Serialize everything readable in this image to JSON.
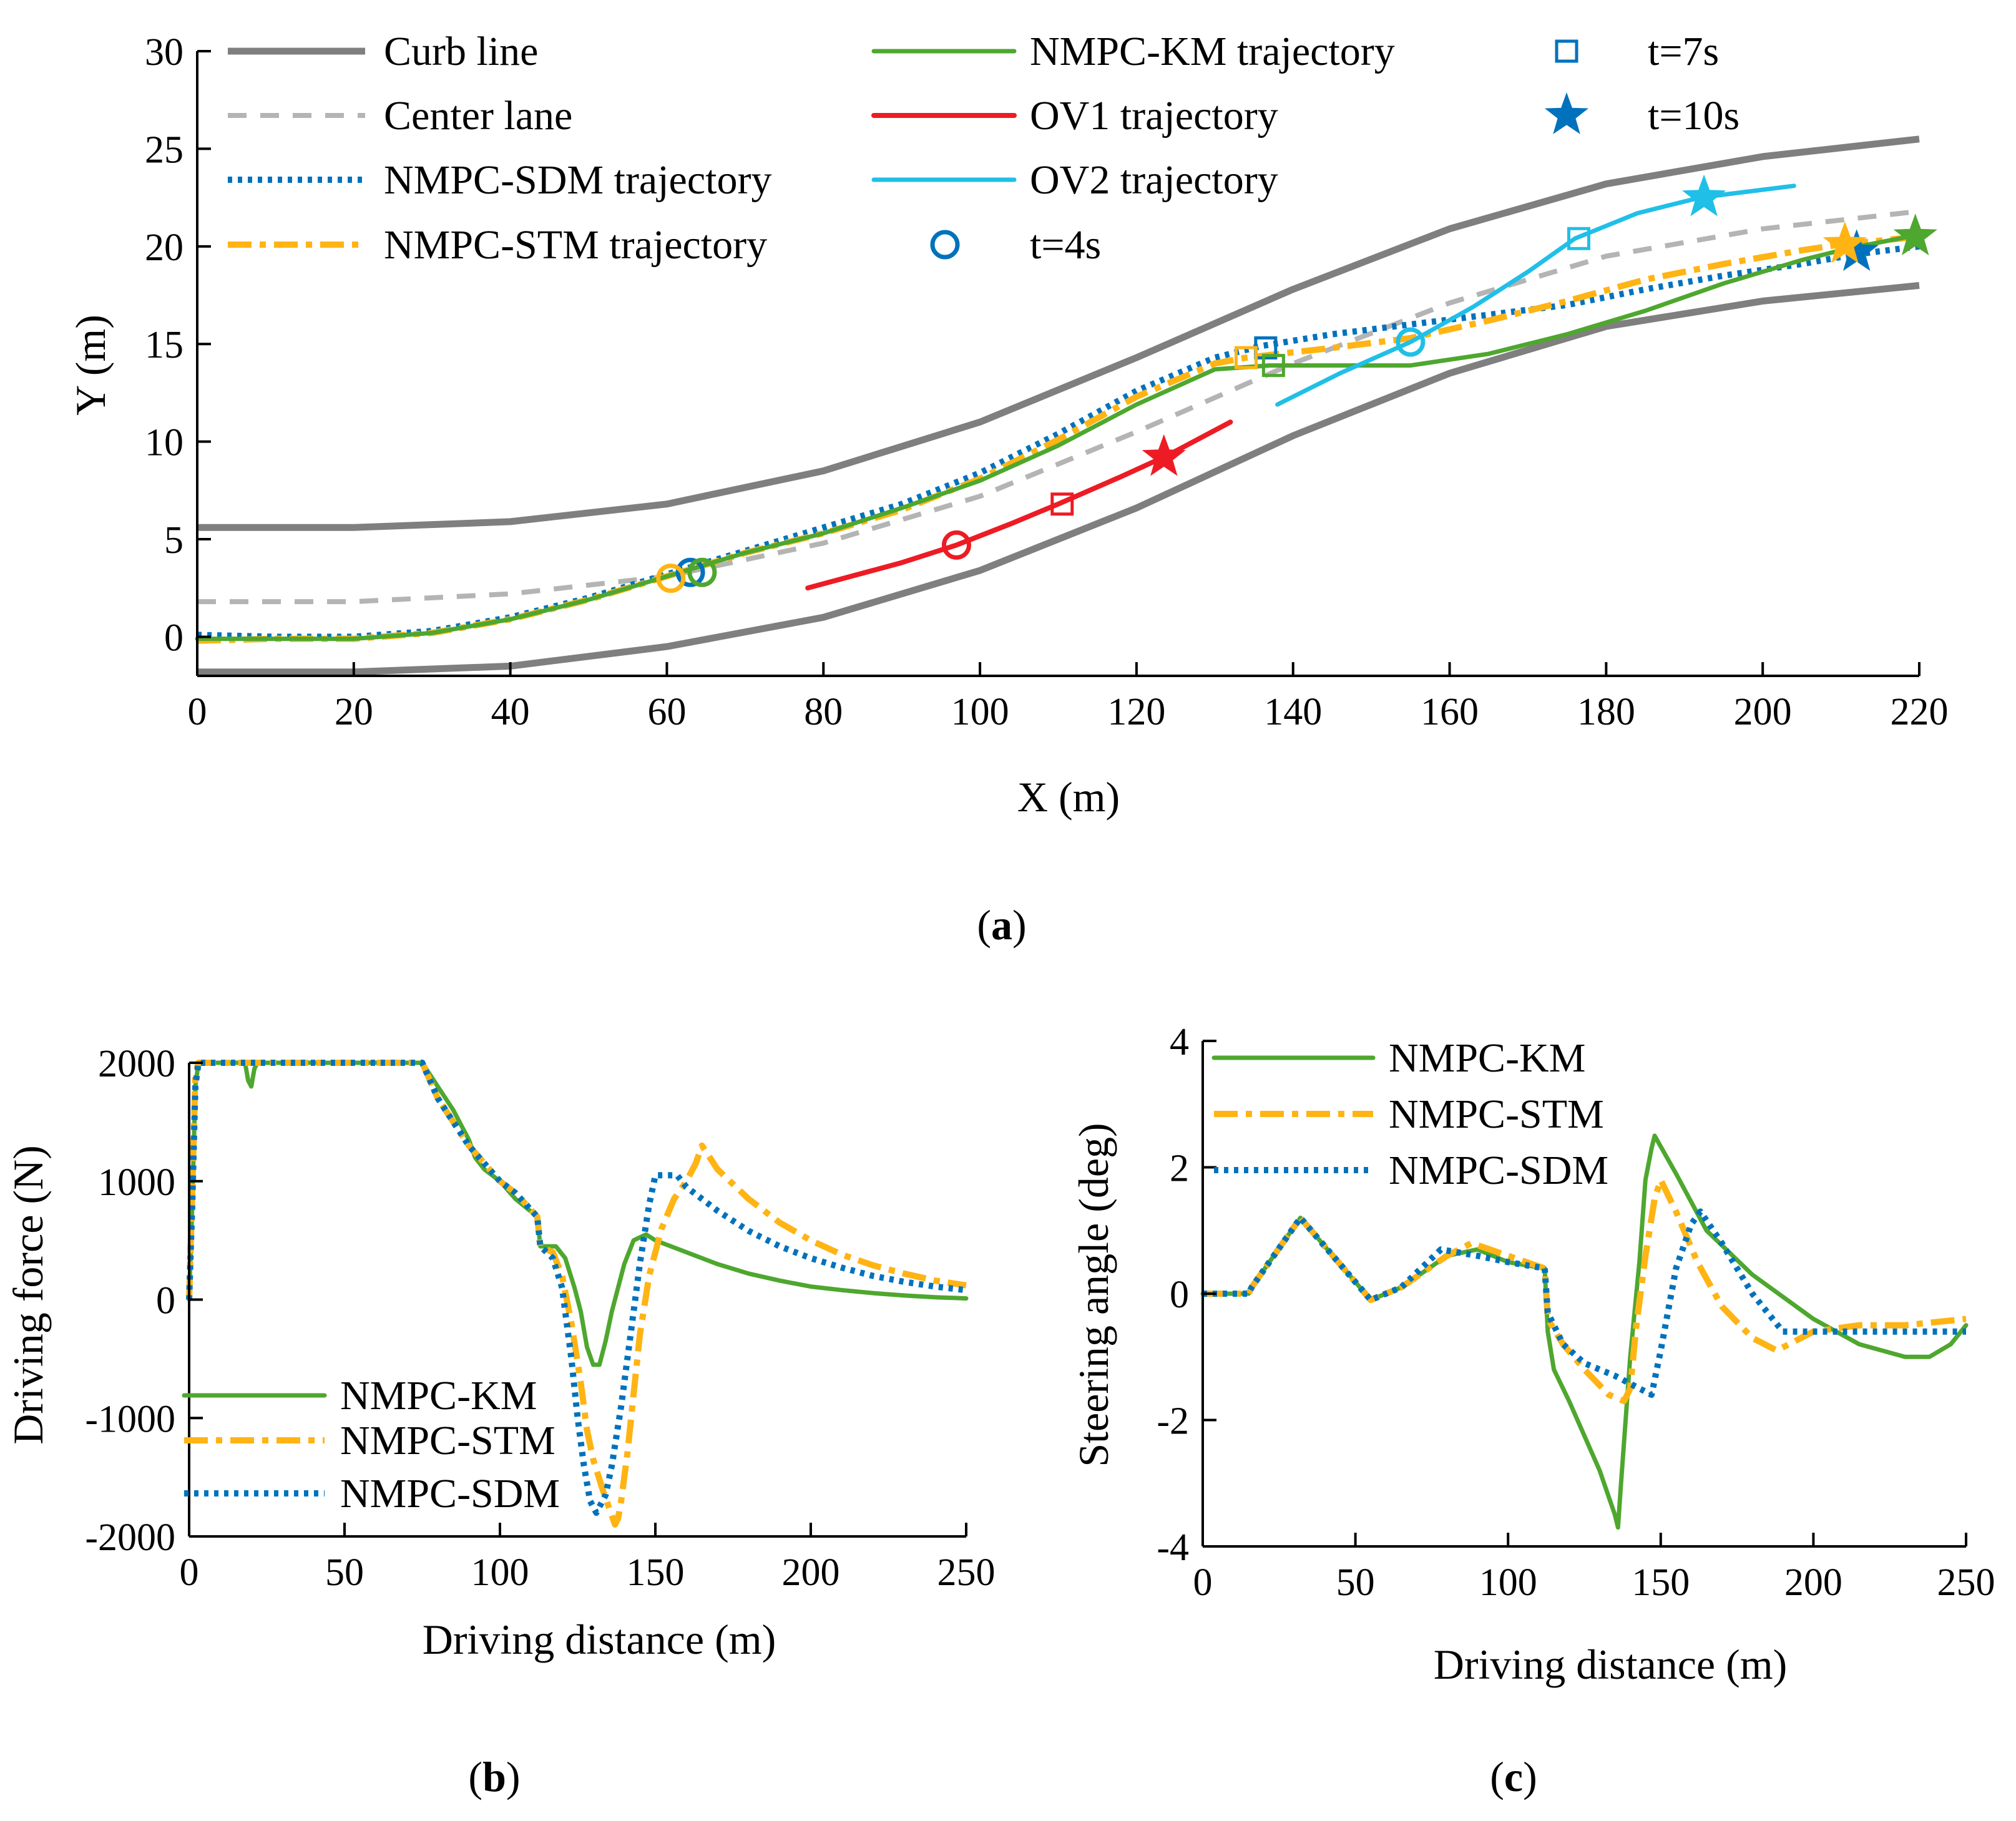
{
  "chart_data": [
    {
      "id": "a",
      "type": "line",
      "panel_label": "a",
      "xlabel": "X (m)",
      "ylabel": "Y (m)",
      "xlim": [
        0,
        220
      ],
      "ylim": [
        -2,
        30
      ],
      "xticks": [
        0,
        20,
        40,
        60,
        80,
        100,
        120,
        140,
        160,
        180,
        200,
        220
      ],
      "yticks": [
        0,
        5,
        10,
        15,
        20,
        25,
        30
      ],
      "legend": [
        {
          "label": "Curb line",
          "style": "curb",
          "symbol": "line"
        },
        {
          "label": "Center lane",
          "style": "center",
          "symbol": "line"
        },
        {
          "label": "NMPC-SDM trajectory",
          "style": "sdm",
          "symbol": "line"
        },
        {
          "label": "NMPC-STM trajectory",
          "style": "stm",
          "symbol": "line"
        },
        {
          "label": "NMPC-KM trajectory",
          "style": "km",
          "symbol": "line"
        },
        {
          "label": "OV1 trajectory",
          "style": "ov1",
          "symbol": "line"
        },
        {
          "label": "OV2 trajectory",
          "style": "ov2",
          "symbol": "line"
        },
        {
          "label": "t=4s",
          "style": "marker",
          "symbol": "circle"
        },
        {
          "label": "t=7s",
          "style": "marker",
          "symbol": "square"
        },
        {
          "label": "t=10s",
          "style": "marker",
          "symbol": "star"
        }
      ],
      "series": [
        {
          "name": "Curb line (upper)",
          "style": "curb",
          "x": [
            0,
            20,
            40,
            60,
            80,
            100,
            120,
            140,
            160,
            180,
            200,
            220
          ],
          "y": [
            5.6,
            5.6,
            5.9,
            6.8,
            8.5,
            11.0,
            14.3,
            17.8,
            20.9,
            23.2,
            24.6,
            25.5
          ]
        },
        {
          "name": "Curb line (lower)",
          "style": "curb",
          "x": [
            0,
            20,
            40,
            60,
            80,
            100,
            120,
            140,
            160,
            180,
            200,
            220
          ],
          "y": [
            -1.8,
            -1.8,
            -1.5,
            -0.5,
            1.0,
            3.4,
            6.6,
            10.3,
            13.5,
            15.9,
            17.2,
            18.0
          ]
        },
        {
          "name": "Center lane",
          "style": "center",
          "x": [
            0,
            20,
            40,
            60,
            80,
            100,
            120,
            140,
            160,
            180,
            200,
            220
          ],
          "y": [
            1.8,
            1.8,
            2.2,
            3.1,
            4.8,
            7.2,
            10.5,
            14.0,
            17.1,
            19.5,
            20.9,
            21.8
          ]
        },
        {
          "name": "NMPC-SDM trajectory",
          "style": "sdm",
          "x": [
            0,
            10,
            20,
            30,
            40,
            50,
            60,
            70,
            80,
            90,
            100,
            110,
            120,
            130,
            136,
            145,
            155,
            165,
            175,
            185,
            195,
            205,
            212,
            220
          ],
          "y": [
            0.1,
            0.0,
            0.0,
            0.3,
            1.0,
            2.0,
            3.2,
            4.4,
            5.6,
            6.8,
            8.4,
            10.4,
            12.6,
            14.3,
            14.9,
            15.5,
            16.0,
            16.5,
            17.0,
            17.8,
            18.5,
            19.1,
            19.6,
            20.0
          ]
        },
        {
          "name": "NMPC-STM trajectory",
          "style": "stm",
          "x": [
            0,
            10,
            20,
            30,
            40,
            50,
            60,
            70,
            80,
            90,
            100,
            110,
            120,
            130,
            134,
            145,
            155,
            165,
            175,
            185,
            195,
            205,
            210,
            220
          ],
          "y": [
            -0.2,
            -0.1,
            -0.1,
            0.2,
            0.9,
            1.9,
            3.1,
            4.3,
            5.3,
            6.5,
            8.1,
            10.1,
            12.3,
            14.0,
            14.3,
            14.8,
            15.3,
            16.2,
            17.2,
            18.3,
            19.1,
            19.8,
            20.1,
            20.5
          ]
        },
        {
          "name": "NMPC-KM trajectory",
          "style": "km",
          "x": [
            0,
            10,
            20,
            30,
            40,
            50,
            60,
            70,
            80,
            90,
            100,
            110,
            120,
            130,
            137,
            145,
            155,
            165,
            175,
            185,
            195,
            205,
            211,
            220
          ],
          "y": [
            -0.1,
            -0.1,
            -0.1,
            0.2,
            0.9,
            1.9,
            3.1,
            4.3,
            5.3,
            6.6,
            8.0,
            9.8,
            11.9,
            13.7,
            13.9,
            13.9,
            13.9,
            14.5,
            15.5,
            16.7,
            18.1,
            19.3,
            19.9,
            20.6
          ]
        },
        {
          "name": "OV1 trajectory",
          "style": "ov1",
          "x": [
            78,
            90,
            97,
            104,
            110,
            118,
            124,
            132
          ],
          "y": [
            2.5,
            3.8,
            4.7,
            5.8,
            6.8,
            8.2,
            9.3,
            11.0
          ]
        },
        {
          "name": "OV2 trajectory",
          "style": "ov2",
          "x": [
            138,
            146,
            155,
            163,
            170,
            176,
            184,
            192,
            204
          ],
          "y": [
            11.9,
            13.5,
            15.1,
            16.9,
            18.7,
            20.4,
            21.7,
            22.5,
            23.1
          ]
        }
      ],
      "markers": [
        {
          "series": "NMPC-SDM",
          "time": "t=4s",
          "symbol": "circle",
          "x": 63,
          "y": 3.3,
          "style": "sdm"
        },
        {
          "series": "NMPC-STM",
          "time": "t=4s",
          "symbol": "circle",
          "x": 60.5,
          "y": 3.0,
          "style": "stm"
        },
        {
          "series": "NMPC-KM",
          "time": "t=4s",
          "symbol": "circle",
          "x": 64.5,
          "y": 3.3,
          "style": "km"
        },
        {
          "series": "OV1",
          "time": "t=4s",
          "symbol": "circle",
          "x": 97,
          "y": 4.7,
          "style": "ov1"
        },
        {
          "series": "OV2",
          "time": "t=4s",
          "symbol": "circle",
          "x": 155,
          "y": 15.1,
          "style": "ov2"
        },
        {
          "series": "NMPC-SDM",
          "time": "t=7s",
          "symbol": "square",
          "x": 136.5,
          "y": 14.8,
          "style": "sdm"
        },
        {
          "series": "NMPC-STM",
          "time": "t=7s",
          "symbol": "square",
          "x": 134,
          "y": 14.3,
          "style": "stm"
        },
        {
          "series": "NMPC-KM",
          "time": "t=7s",
          "symbol": "square",
          "x": 137.5,
          "y": 13.9,
          "style": "km"
        },
        {
          "series": "OV1",
          "time": "t=7s",
          "symbol": "square",
          "x": 110.5,
          "y": 6.8,
          "style": "ov1"
        },
        {
          "series": "OV2",
          "time": "t=7s",
          "symbol": "square",
          "x": 176.5,
          "y": 20.4,
          "style": "ov2"
        },
        {
          "series": "NMPC-SDM",
          "time": "t=10s",
          "symbol": "star",
          "x": 212,
          "y": 19.7,
          "style": "sdm"
        },
        {
          "series": "NMPC-STM",
          "time": "t=10s",
          "symbol": "star",
          "x": 210.5,
          "y": 20.1,
          "style": "stm"
        },
        {
          "series": "NMPC-KM",
          "time": "t=10s",
          "symbol": "star",
          "x": 219.5,
          "y": 20.5,
          "style": "km"
        },
        {
          "series": "OV1",
          "time": "t=10s",
          "symbol": "star",
          "x": 123.5,
          "y": 9.2,
          "style": "ov1"
        },
        {
          "series": "OV2",
          "time": "t=10s",
          "symbol": "star",
          "x": 192.5,
          "y": 22.5,
          "style": "ov2"
        }
      ]
    },
    {
      "id": "b",
      "type": "line",
      "panel_label": "b",
      "xlabel": "Driving distance (m)",
      "ylabel": "Driving force (N)",
      "xlim": [
        0,
        250
      ],
      "ylim": [
        -2000,
        2000
      ],
      "xticks": [
        0,
        50,
        100,
        150,
        200,
        250
      ],
      "yticks": [
        -2000,
        -1000,
        0,
        1000,
        2000
      ],
      "legend": [
        {
          "label": "NMPC-KM",
          "style": "km",
          "symbol": "line"
        },
        {
          "label": "NMPC-STM",
          "style": "stm",
          "symbol": "line"
        },
        {
          "label": "NMPC-SDM",
          "style": "sdm",
          "symbol": "line"
        }
      ],
      "series": [
        {
          "name": "NMPC-KM",
          "style": "km",
          "x": [
            0,
            1,
            2,
            3,
            18,
            19,
            20,
            21,
            22,
            75,
            80,
            85,
            88,
            90,
            92,
            95,
            100,
            105,
            112,
            113,
            118,
            121,
            124,
            126,
            128,
            130,
            132,
            134,
            136,
            140,
            143,
            147,
            150,
            160,
            170,
            180,
            190,
            200,
            210,
            220,
            230,
            240,
            250
          ],
          "y": [
            0,
            800,
            1800,
            2000,
            2000,
            1850,
            1800,
            1950,
            2000,
            2000,
            1800,
            1600,
            1450,
            1350,
            1200,
            1100,
            1000,
            850,
            700,
            450,
            450,
            350,
            100,
            -100,
            -400,
            -550,
            -550,
            -350,
            -100,
            300,
            500,
            550,
            500,
            400,
            300,
            220,
            160,
            110,
            80,
            55,
            35,
            20,
            10
          ]
        },
        {
          "name": "NMPC-STM",
          "style": "stm",
          "x": [
            0,
            1,
            2,
            3,
            75,
            80,
            85,
            90,
            95,
            100,
            105,
            112,
            113,
            117,
            120,
            123,
            126,
            128,
            130,
            133,
            135,
            137,
            138,
            139,
            141,
            143,
            145,
            148,
            152,
            156,
            160,
            163,
            165,
            170,
            180,
            190,
            200,
            210,
            220,
            230,
            240,
            250
          ],
          "y": [
            0,
            900,
            1900,
            2000,
            2000,
            1700,
            1500,
            1300,
            1150,
            1000,
            900,
            700,
            450,
            400,
            200,
            -200,
            -700,
            -1100,
            -1350,
            -1600,
            -1750,
            -1900,
            -1850,
            -1700,
            -1300,
            -800,
            -300,
            200,
            600,
            850,
            1000,
            1150,
            1300,
            1100,
            850,
            650,
            500,
            380,
            290,
            220,
            160,
            120
          ]
        },
        {
          "name": "NMPC-SDM",
          "style": "sdm",
          "x": [
            0,
            1,
            2,
            3,
            75,
            80,
            85,
            90,
            95,
            100,
            105,
            112,
            113,
            117,
            120,
            123,
            125,
            127,
            129,
            131,
            132,
            134,
            136,
            139,
            142,
            145,
            148,
            150,
            153,
            157,
            160,
            170,
            180,
            190,
            200,
            210,
            220,
            230,
            240,
            250
          ],
          "y": [
            0,
            800,
            1800,
            2000,
            2000,
            1700,
            1500,
            1300,
            1150,
            1000,
            900,
            700,
            450,
            350,
            100,
            -500,
            -1000,
            -1400,
            -1700,
            -1800,
            -1750,
            -1650,
            -1400,
            -900,
            -300,
            300,
            800,
            1050,
            1050,
            1050,
            950,
            750,
            580,
            450,
            350,
            270,
            200,
            150,
            110,
            80
          ]
        }
      ]
    },
    {
      "id": "c",
      "type": "line",
      "panel_label": "c",
      "xlabel": "Driving distance (m)",
      "ylabel": "Steering angle (deg)",
      "xlim": [
        0,
        250
      ],
      "ylim": [
        -4,
        4
      ],
      "xticks": [
        0,
        50,
        100,
        150,
        200,
        250
      ],
      "yticks": [
        -4,
        -2,
        0,
        2,
        4
      ],
      "legend": [
        {
          "label": "NMPC-KM",
          "style": "km",
          "symbol": "line"
        },
        {
          "label": "NMPC-STM",
          "style": "stm",
          "symbol": "line"
        },
        {
          "label": "NMPC-SDM",
          "style": "sdm",
          "symbol": "line"
        }
      ],
      "series": [
        {
          "name": "NMPC-KM",
          "style": "km",
          "x": [
            0,
            15,
            16,
            32,
            55,
            65,
            80,
            90,
            100,
            112,
            113,
            115,
            120,
            130,
            135,
            136,
            137,
            140,
            143,
            145,
            147,
            148,
            155,
            165,
            180,
            200,
            215,
            230,
            238,
            245,
            250
          ],
          "y": [
            0,
            0,
            0.1,
            1.2,
            -0.1,
            0.1,
            0.6,
            0.7,
            0.5,
            0.4,
            -0.6,
            -1.2,
            -1.7,
            -2.8,
            -3.5,
            -3.7,
            -3.0,
            -1.0,
            0.5,
            1.8,
            2.3,
            2.5,
            1.9,
            1.0,
            0.3,
            -0.4,
            -0.8,
            -1.0,
            -1.0,
            -0.8,
            -0.5
          ]
        },
        {
          "name": "NMPC-STM",
          "style": "stm",
          "x": [
            0,
            15,
            16,
            32,
            55,
            65,
            80,
            88,
            100,
            112,
            113,
            118,
            125,
            133,
            138,
            140,
            142,
            145,
            148,
            150,
            155,
            162,
            170,
            180,
            188,
            200,
            215,
            230,
            250
          ],
          "y": [
            0,
            0,
            0.1,
            1.2,
            -0.1,
            0.1,
            0.6,
            0.8,
            0.6,
            0.4,
            -0.4,
            -0.8,
            -1.2,
            -1.6,
            -1.7,
            -1.5,
            -0.5,
            0.6,
            1.5,
            1.8,
            1.3,
            0.5,
            -0.2,
            -0.7,
            -0.9,
            -0.6,
            -0.5,
            -0.5,
            -0.4
          ]
        },
        {
          "name": "NMPC-SDM",
          "style": "sdm",
          "x": [
            0,
            15,
            16,
            32,
            55,
            65,
            78,
            90,
            100,
            112,
            113,
            118,
            125,
            135,
            143,
            147,
            150,
            155,
            160,
            163,
            170,
            180,
            190,
            200,
            215,
            230,
            250
          ],
          "y": [
            0,
            0,
            0.1,
            1.2,
            -0.1,
            0.1,
            0.7,
            0.6,
            0.5,
            0.4,
            -0.3,
            -0.8,
            -1.1,
            -1.3,
            -1.5,
            -1.6,
            -0.9,
            0.4,
            1.1,
            1.3,
            0.8,
            0.0,
            -0.6,
            -0.6,
            -0.6,
            -0.6,
            -0.6
          ]
        }
      ]
    }
  ],
  "colors": {
    "curb": "#7f7f7f",
    "center": "#b4b4b4",
    "sdm": "#0072bd",
    "stm": "#ffb414",
    "km": "#4ea72e",
    "ov1": "#ed1c24",
    "ov2": "#20bfe8",
    "marker": "#0072bd",
    "axis": "#000000"
  }
}
